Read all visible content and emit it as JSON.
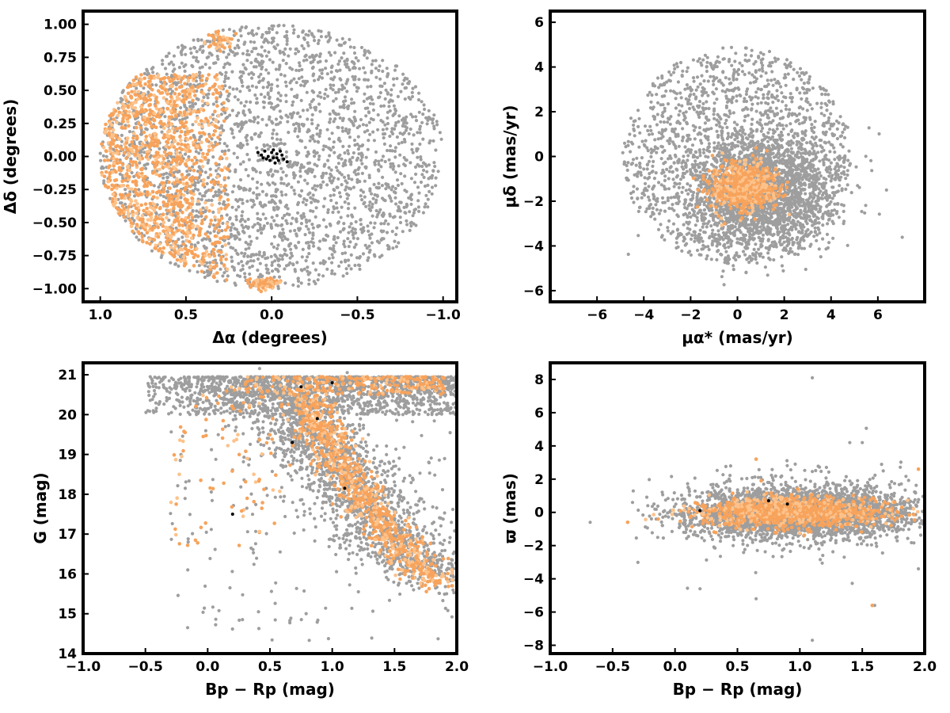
{
  "colors": {
    "field_stars": "#9e9e9e",
    "members": "#f7a35c",
    "members_light": "#fdc28a",
    "core_stars": "#000000",
    "axes": "#000000"
  },
  "chart_data": [
    {
      "id": "sky",
      "type": "scatter",
      "xlabel": "Δα (degrees)",
      "ylabel": "Δδ (degrees)",
      "xlim": [
        1.1,
        -1.08
      ],
      "ylim": [
        -1.1,
        1.1
      ],
      "x_inverted": true,
      "xticks": [
        1.0,
        0.5,
        0.0,
        -0.5,
        -1.0
      ],
      "xtick_labels": [
        "1.0",
        "0.5",
        "0.0",
        "−0.5",
        "−1.0"
      ],
      "yticks": [
        1.0,
        0.75,
        0.5,
        0.25,
        0.0,
        -0.25,
        -0.5,
        -0.75,
        -1.0
      ],
      "ytick_labels": [
        "1.00",
        "0.75",
        "0.50",
        "0.25",
        "0.00",
        "−0.25",
        "−0.50",
        "−0.75",
        "−1.00"
      ],
      "series": [
        {
          "role": "field",
          "distribution": "uniform disk",
          "center": [
            0.0,
            0.0
          ],
          "radius": 1.0,
          "count": 2600
        },
        {
          "role": "members",
          "distribution": "eastern crescent",
          "x_range": [
            0.25,
            1.0
          ],
          "count": 1200
        },
        {
          "role": "members",
          "distribution": "clump",
          "center": [
            0.05,
            -0.96
          ],
          "spread": [
            0.05,
            0.02
          ],
          "count": 80
        },
        {
          "role": "members",
          "distribution": "clump",
          "center": [
            0.3,
            0.88
          ],
          "spread": [
            0.05,
            0.04
          ],
          "count": 40
        },
        {
          "role": "core",
          "points": [
            [
              0.08,
              0.03
            ],
            [
              0.06,
              0.01
            ],
            [
              0.04,
              0.04
            ],
            [
              0.02,
              0.0
            ],
            [
              0.0,
              0.03
            ],
            [
              -0.01,
              -0.01
            ],
            [
              -0.03,
              0.02
            ],
            [
              -0.04,
              -0.03
            ],
            [
              -0.02,
              -0.05
            ],
            [
              0.01,
              -0.03
            ],
            [
              0.03,
              -0.02
            ],
            [
              -0.06,
              0.01
            ],
            [
              -0.05,
              0.04
            ],
            [
              -0.07,
              -0.02
            ],
            [
              -0.09,
              -0.04
            ],
            [
              0.05,
              -0.01
            ],
            [
              -0.01,
              0.05
            ],
            [
              -0.03,
              -0.01
            ]
          ]
        }
      ]
    },
    {
      "id": "proper-motion",
      "type": "scatter",
      "xlabel": "μα* (mas/yr)",
      "ylabel": "μδ (mas/yr)",
      "xlim": [
        -8,
        8
      ],
      "ylim": [
        -6.5,
        6.5
      ],
      "xticks": [
        -6,
        -4,
        -2,
        0,
        2,
        4,
        6
      ],
      "xtick_labels": [
        "−6",
        "−4",
        "−2",
        "0",
        "2",
        "4",
        "6"
      ],
      "yticks": [
        6,
        4,
        2,
        0,
        -2,
        -4,
        -6
      ],
      "ytick_labels": [
        "6",
        "4",
        "2",
        "0",
        "−2",
        "−4",
        "−6"
      ],
      "series": [
        {
          "role": "field",
          "distribution": "uniform disk",
          "center": [
            0.0,
            0.0
          ],
          "radius": 4.9,
          "count": 1500
        },
        {
          "role": "field",
          "distribution": "gaussian",
          "center": [
            1.0,
            -1.5
          ],
          "spread": [
            1.6,
            1.3
          ],
          "count": 2200
        },
        {
          "role": "members",
          "distribution": "gaussian",
          "center": [
            0.3,
            -1.3
          ],
          "spread": [
            0.7,
            0.55
          ],
          "count": 700
        }
      ]
    },
    {
      "id": "cmd",
      "type": "scatter",
      "xlabel": "Bp − Rp (mag)",
      "ylabel": "G (mag)",
      "xlim": [
        -1.0,
        2.0
      ],
      "ylim": [
        14.0,
        21.3
      ],
      "xticks": [
        -1.0,
        -0.5,
        0.0,
        0.5,
        1.0,
        1.5,
        2.0
      ],
      "xtick_labels": [
        "−1.0",
        "−0.5",
        "0.0",
        "0.5",
        "1.0",
        "1.5",
        "2.0"
      ],
      "yticks": [
        21,
        20,
        19,
        18,
        17,
        16,
        15,
        14
      ],
      "ytick_labels": [
        "21",
        "20",
        "19",
        "18",
        "17",
        "16",
        "15",
        "14"
      ],
      "series": [
        {
          "role": "field",
          "distribution": "faint band",
          "color_range": [
            -0.5,
            2.0
          ],
          "mag_range": [
            20.0,
            20.95
          ],
          "count": 1500
        },
        {
          "role": "field",
          "distribution": "sequence",
          "track": [
            [
              1.9,
              15.8
            ],
            [
              1.6,
              16.4
            ],
            [
              1.45,
              17.0
            ],
            [
              1.3,
              17.6
            ],
            [
              1.15,
              18.2
            ],
            [
              1.0,
              18.8
            ],
            [
              0.85,
              19.4
            ],
            [
              0.7,
              20.0
            ],
            [
              0.55,
              20.7
            ]
          ],
          "spread": [
            0.22,
            0.45
          ],
          "count": 1700
        },
        {
          "role": "field",
          "distribution": "scatter",
          "color_range": [
            -0.3,
            2.0
          ],
          "mag_range": [
            14.3,
            20.0
          ],
          "count": 180
        },
        {
          "role": "members",
          "distribution": "sequence",
          "track": [
            [
              1.85,
              15.8
            ],
            [
              1.65,
              16.3
            ],
            [
              1.5,
              16.9
            ],
            [
              1.35,
              17.5
            ],
            [
              1.2,
              18.1
            ],
            [
              1.05,
              18.8
            ],
            [
              0.95,
              19.4
            ],
            [
              0.85,
              20.0
            ],
            [
              0.75,
              20.6
            ]
          ],
          "spread": [
            0.1,
            0.25
          ],
          "count": 900
        },
        {
          "role": "members",
          "distribution": "faint band",
          "color_range": [
            0.3,
            1.9
          ],
          "mag_range": [
            20.5,
            20.95
          ],
          "count": 250
        },
        {
          "role": "members",
          "distribution": "blue branch",
          "color_range": [
            -0.3,
            0.6
          ],
          "mag_range": [
            16.7,
            20.8
          ],
          "count": 90
        },
        {
          "role": "core",
          "points": [
            [
              0.2,
              17.5
            ],
            [
              0.68,
              19.3
            ],
            [
              0.88,
              19.9
            ],
            [
              0.75,
              20.7
            ],
            [
              1.0,
              20.8
            ],
            [
              1.1,
              18.15
            ]
          ]
        }
      ]
    },
    {
      "id": "parallax",
      "type": "scatter",
      "xlabel": "Bp − Rp (mag)",
      "ylabel": "ϖ (mas)",
      "xlim": [
        -1.0,
        2.0
      ],
      "ylim": [
        -8.5,
        9.0
      ],
      "xticks": [
        -1.0,
        -0.5,
        0.0,
        0.5,
        1.0,
        1.5,
        2.0
      ],
      "xtick_labels": [
        "−1.0",
        "−0.5",
        "0.0",
        "0.5",
        "1.0",
        "1.5",
        "2.0"
      ],
      "yticks": [
        8,
        6,
        4,
        2,
        0,
        -2,
        -4,
        -6,
        -8
      ],
      "ytick_labels": [
        "8",
        "6",
        "4",
        "2",
        "0",
        "−2",
        "−4",
        "−6",
        "−8"
      ],
      "series": [
        {
          "role": "field",
          "distribution": "gaussian",
          "center": [
            1.0,
            0.0
          ],
          "spread": [
            0.45,
            0.75
          ],
          "x_clip": [
            -0.35,
            2.0
          ],
          "count": 3200
        },
        {
          "role": "field",
          "distribution": "gaussian",
          "center": [
            1.0,
            0.0
          ],
          "spread": [
            0.5,
            1.8
          ],
          "x_clip": [
            -0.3,
            2.0
          ],
          "count": 160
        },
        {
          "role": "field",
          "points": [
            [
              -0.68,
              -0.6
            ],
            [
              1.1,
              8.1
            ],
            [
              1.1,
              -7.7
            ],
            [
              0.2,
              -4.6
            ],
            [
              1.6,
              -5.6
            ],
            [
              1.95,
              -3.4
            ],
            [
              0.65,
              -5.2
            ],
            [
              1.4,
              4.2
            ],
            [
              1.5,
              4.2
            ]
          ]
        },
        {
          "role": "members",
          "distribution": "gaussian",
          "center": [
            0.95,
            0.0
          ],
          "spread": [
            0.38,
            0.45
          ],
          "x_clip": [
            -0.4,
            1.95
          ],
          "count": 1100
        },
        {
          "role": "members",
          "points": [
            [
              -0.38,
              -0.6
            ],
            [
              1.58,
              -5.6
            ],
            [
              0.65,
              3.2
            ],
            [
              1.95,
              2.6
            ]
          ]
        },
        {
          "role": "core",
          "points": [
            [
              0.75,
              0.7
            ],
            [
              0.9,
              0.5
            ],
            [
              0.2,
              0.1
            ]
          ]
        }
      ]
    }
  ]
}
